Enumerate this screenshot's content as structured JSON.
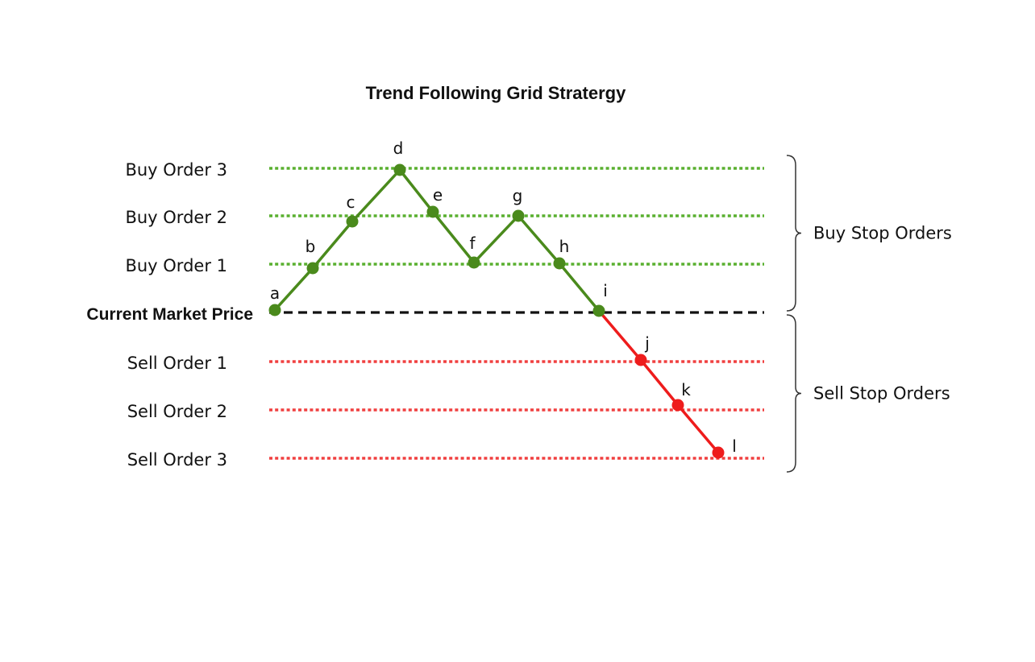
{
  "title": "Trend Following Grid Stratergy",
  "levels": [
    {
      "key": "buy3",
      "label": "Buy Order 3",
      "kind": "buy",
      "bold": false
    },
    {
      "key": "buy2",
      "label": "Buy Order 2",
      "kind": "buy",
      "bold": false
    },
    {
      "key": "buy1",
      "label": "Buy Order 1",
      "kind": "buy",
      "bold": false
    },
    {
      "key": "market",
      "label": "Current Market Price",
      "kind": "market",
      "bold": true
    },
    {
      "key": "sell1",
      "label": "Sell Order 1",
      "kind": "sell",
      "bold": false
    },
    {
      "key": "sell2",
      "label": "Sell Order 2",
      "kind": "sell",
      "bold": false
    },
    {
      "key": "sell3",
      "label": "Sell Order 3",
      "kind": "sell",
      "bold": false
    }
  ],
  "path_points": [
    {
      "label": "a",
      "level": "market",
      "side": "buy"
    },
    {
      "label": "b",
      "level": "buy1",
      "side": "buy"
    },
    {
      "label": "c",
      "level": "buy2",
      "side": "buy"
    },
    {
      "label": "d",
      "level": "buy3",
      "side": "buy"
    },
    {
      "label": "e",
      "level": "buy2",
      "side": "buy"
    },
    {
      "label": "f",
      "level": "buy1",
      "side": "buy"
    },
    {
      "label": "g",
      "level": "buy2",
      "side": "buy"
    },
    {
      "label": "h",
      "level": "buy1",
      "side": "buy"
    },
    {
      "label": "i",
      "level": "market",
      "side": "buy"
    },
    {
      "label": "j",
      "level": "sell1",
      "side": "sell"
    },
    {
      "label": "k",
      "level": "sell2",
      "side": "sell"
    },
    {
      "label": "l",
      "level": "sell3",
      "side": "sell"
    }
  ],
  "groups": [
    {
      "label": "Buy Stop Orders",
      "from": "buy3",
      "to": "market"
    },
    {
      "label": "Sell Stop Orders",
      "from": "market",
      "to": "sell3"
    }
  ],
  "colors": {
    "buy": "#4a8a1c",
    "buy_grid": "#5ab030",
    "sell": "#ee1c1c",
    "sell_grid": "#f04040",
    "market": "#111111",
    "brace": "#333333"
  }
}
